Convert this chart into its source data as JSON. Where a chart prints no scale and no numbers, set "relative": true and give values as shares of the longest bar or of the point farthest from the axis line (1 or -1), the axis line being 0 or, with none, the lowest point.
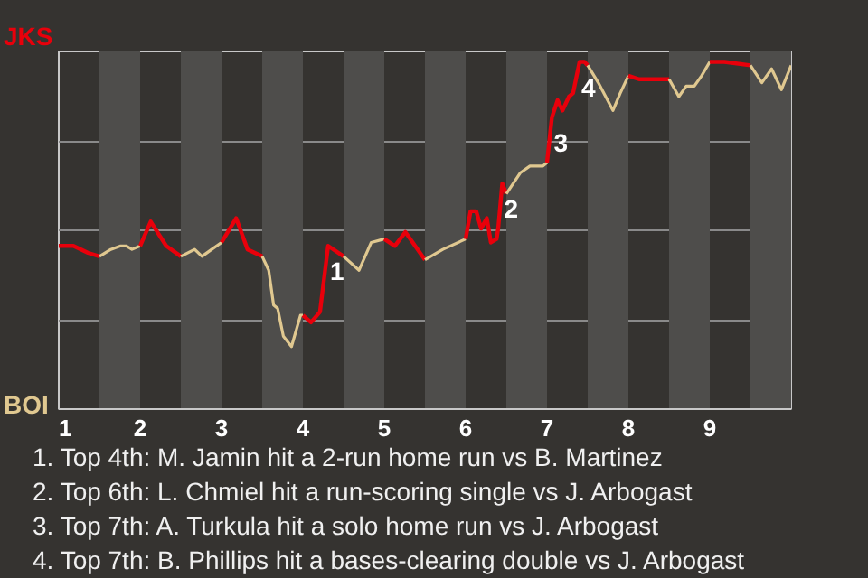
{
  "chart_data": {
    "type": "line",
    "relative": true,
    "xlim": [
      1,
      10
    ],
    "xticks": [
      1,
      2,
      3,
      4,
      5,
      6,
      7,
      8,
      9
    ],
    "grid": "y",
    "line_style": "solid",
    "marker": "none",
    "bands": [
      {
        "axis": "x",
        "from": 1.5,
        "to": 2,
        "color": "#4e4d4b"
      },
      {
        "axis": "x",
        "from": 2.5,
        "to": 3,
        "color": "#4e4d4b"
      },
      {
        "axis": "x",
        "from": 3.5,
        "to": 4,
        "color": "#4e4d4b"
      },
      {
        "axis": "x",
        "from": 4.5,
        "to": 5,
        "color": "#4e4d4b"
      },
      {
        "axis": "x",
        "from": 5.5,
        "to": 6,
        "color": "#4e4d4b"
      },
      {
        "axis": "x",
        "from": 6.5,
        "to": 7,
        "color": "#4e4d4b"
      },
      {
        "axis": "x",
        "from": 7.5,
        "to": 8,
        "color": "#4e4d4b"
      },
      {
        "axis": "x",
        "from": 8.5,
        "to": 9,
        "color": "#4e4d4b"
      },
      {
        "axis": "x",
        "from": 9.5,
        "to": 10,
        "color": "#4e4d4b"
      }
    ],
    "series": [
      {
        "color": "#e8000b",
        "x": [
          1,
          1.18,
          1.36,
          1.5
        ],
        "values": [
          0.47,
          0.47,
          0.45,
          0.44
        ]
      },
      {
        "color": "#e0c890",
        "x": [
          1.5,
          1.64,
          1.76,
          1.83,
          1.9,
          2
        ],
        "values": [
          0.44,
          0.46,
          0.47,
          0.47,
          0.46,
          0.47
        ]
      },
      {
        "color": "#e8000b",
        "x": [
          2,
          2.13,
          2.32,
          2.5
        ],
        "values": [
          0.47,
          0.54,
          0.47,
          0.44
        ]
      },
      {
        "color": "#e0c890",
        "x": [
          2.5,
          2.67,
          2.76,
          2.88,
          3
        ],
        "values": [
          0.44,
          0.46,
          0.44,
          0.46,
          0.48
        ]
      },
      {
        "color": "#e8000b",
        "x": [
          3,
          3.18,
          3.32,
          3.5
        ],
        "values": [
          0.48,
          0.55,
          0.46,
          0.44
        ]
      },
      {
        "color": "#e0c890",
        "x": [
          3.5,
          3.58,
          3.64,
          3.69,
          3.76,
          3.86,
          3.97,
          4
        ],
        "values": [
          0.44,
          0.4,
          0.3,
          0.29,
          0.21,
          0.18,
          0.27,
          0.27
        ]
      },
      {
        "color": "#e8000b",
        "x": [
          4,
          4.1,
          4.21,
          4.31,
          4.5
        ],
        "values": [
          0.27,
          0.25,
          0.28,
          0.47,
          0.44
        ]
      },
      {
        "color": "#e0c890",
        "x": [
          4.5,
          4.69,
          4.84,
          5
        ],
        "values": [
          0.44,
          0.4,
          0.48,
          0.49
        ]
      },
      {
        "color": "#e8000b",
        "x": [
          5,
          5.13,
          5.26,
          5.5
        ],
        "values": [
          0.49,
          0.47,
          0.51,
          0.43
        ]
      },
      {
        "color": "#e0c890",
        "x": [
          5.5,
          5.72,
          6
        ],
        "values": [
          0.43,
          0.46,
          0.49
        ]
      },
      {
        "color": "#e8000b",
        "x": [
          6,
          6.06,
          6.13,
          6.19,
          6.26,
          6.31,
          6.38,
          6.4,
          6.45,
          6.5
        ],
        "values": [
          0.49,
          0.57,
          0.57,
          0.52,
          0.55,
          0.48,
          0.49,
          0.52,
          0.65,
          0.62
        ]
      },
      {
        "color": "#e0c890",
        "x": [
          6.5,
          6.67,
          6.79,
          6.95,
          7
        ],
        "values": [
          0.62,
          0.68,
          0.7,
          0.7,
          0.71
        ]
      },
      {
        "color": "#e8000b",
        "x": [
          7,
          7.06,
          7.13,
          7.19,
          7.27,
          7.32,
          7.4,
          7.46,
          7.5
        ],
        "values": [
          0.71,
          0.84,
          0.89,
          0.86,
          0.9,
          0.91,
          1,
          1,
          0.99
        ]
      },
      {
        "color": "#e0c890",
        "x": [
          7.5,
          7.63,
          7.81,
          7.9,
          8
        ],
        "values": [
          0.99,
          0.94,
          0.86,
          0.91,
          0.96
        ]
      },
      {
        "color": "#e8000b",
        "x": [
          8,
          8.13,
          8.5
        ],
        "values": [
          0.96,
          0.95,
          0.95
        ]
      },
      {
        "color": "#e0c890",
        "x": [
          8.5,
          8.62,
          8.71,
          8.81,
          8.9,
          9
        ],
        "values": [
          0.95,
          0.9,
          0.93,
          0.93,
          0.96,
          1
        ]
      },
      {
        "color": "#e8000b",
        "x": [
          9,
          9.18,
          9.5
        ],
        "values": [
          1,
          1,
          0.99
        ]
      },
      {
        "color": "#e0c890",
        "x": [
          9.5,
          9.64,
          9.76,
          9.88,
          10
        ],
        "values": [
          0.99,
          0.94,
          0.98,
          0.92,
          0.99
        ]
      }
    ],
    "annotations": [
      {
        "text": "1",
        "x": 4.31,
        "y": 0.47
      },
      {
        "text": "2",
        "x": 6.45,
        "y": 0.65
      },
      {
        "text": "3",
        "x": 7.06,
        "y": 0.84
      },
      {
        "text": "4",
        "x": 7.4,
        "y": 1
      },
      "JKS",
      "BOI",
      "1. Top 4th: M. Jamin hit a 2-run home run vs B. Martinez",
      "2. Top 6th: L. Chmiel hit a run-scoring single vs J. Arbogast",
      "3. Top 7th: A. Turkula hit a solo home run vs J. Arbogast",
      "4. Top 7th: B. Phillips hit a bases-clearing double vs J. Arbogast"
    ]
  }
}
